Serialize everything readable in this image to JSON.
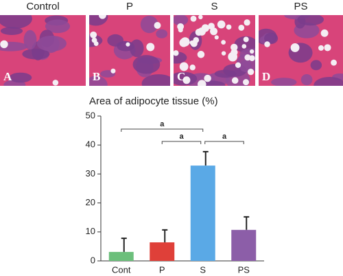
{
  "panels": [
    {
      "title": "Control",
      "letter": "A"
    },
    {
      "title": "P",
      "letter": "B"
    },
    {
      "title": "S",
      "letter": "C"
    },
    {
      "title": "PS",
      "letter": "D"
    }
  ],
  "chart_data": {
    "type": "bar",
    "title": "Area of adipocyte tissue (%)",
    "categories": [
      "Cont",
      "P",
      "S",
      "PS"
    ],
    "values": [
      3.1,
      6.4,
      32.9,
      10.7
    ],
    "errors": [
      4.7,
      4.3,
      4.8,
      4.5
    ],
    "colors": [
      "#6cbf7b",
      "#df4039",
      "#5aa9e6",
      "#8c5ea8"
    ],
    "ylim": [
      0,
      50
    ],
    "yticks": [
      0,
      10,
      20,
      30,
      40,
      50
    ],
    "significance": [
      {
        "label": "a",
        "pair": [
          "Cont",
          "S"
        ]
      },
      {
        "label": "a",
        "pair": [
          "P",
          "S"
        ]
      },
      {
        "label": "a",
        "pair": [
          "S",
          "PS"
        ]
      }
    ]
  }
}
